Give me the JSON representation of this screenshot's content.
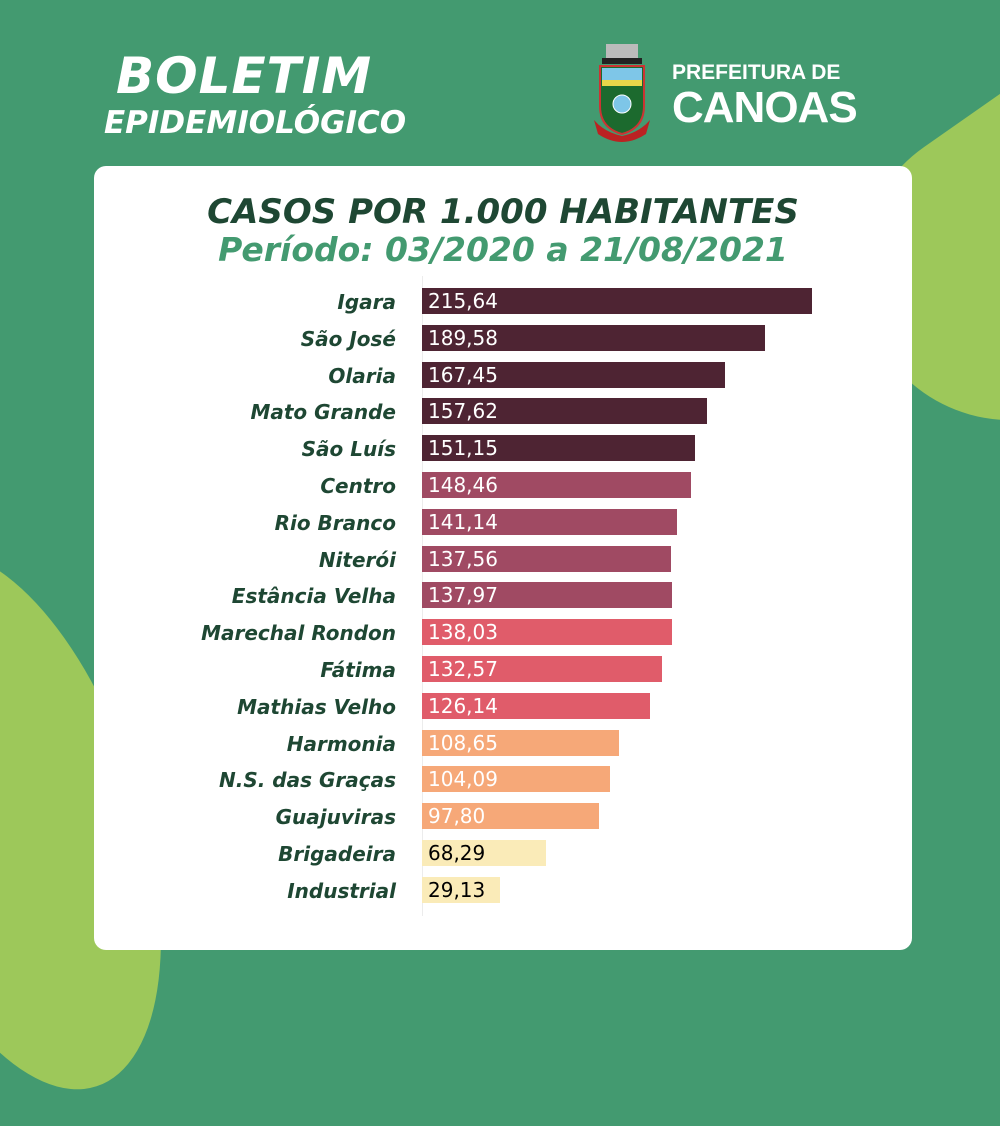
{
  "header": {
    "title_line1": "BOLETIM",
    "title_line2": "EPIDEMIOLÓGICO",
    "brand_line1": "PREFEITURA DE",
    "brand_line2": "CANOAS",
    "seal_text": "CANOAS"
  },
  "chart_data": {
    "type": "bar",
    "orientation": "horizontal",
    "title": "CASOS POR 1.000 HABITANTES",
    "subtitle": "Período: 03/2020 a 21/08/2021",
    "categories": [
      "Igara",
      "São José",
      "Olaria",
      "Mato Grande",
      "São Luís",
      "Centro",
      "Rio Branco",
      "Niterói",
      "Estância Velha",
      "Marechal Rondon",
      "Fátima",
      "Mathias Velho",
      "Harmonia",
      "N.S. das Graças",
      "Guajuviras",
      "Brigadeira",
      "Industrial"
    ],
    "values": [
      215.64,
      189.58,
      167.45,
      157.62,
      151.15,
      148.46,
      141.14,
      137.56,
      137.97,
      138.03,
      132.57,
      126.14,
      108.65,
      104.09,
      97.8,
      68.29,
      29.13
    ],
    "labels": [
      "215,64",
      "189,58",
      "167,45",
      "157,62",
      "151,15",
      "148,46",
      "141,14",
      "137,56",
      "137,97",
      "138,03",
      "132,57",
      "126,14",
      "108,65",
      "104,09",
      "97,80",
      "68,29",
      "29,13"
    ],
    "colors": [
      "#4e2433",
      "#4e2433",
      "#4e2433",
      "#4e2433",
      "#4e2433",
      "#a04a63",
      "#a04a63",
      "#a04a63",
      "#a04a63",
      "#e05c6a",
      "#e05c6a",
      "#e05c6a",
      "#f6a878",
      "#f6a878",
      "#f6a878",
      "#faebb8",
      "#faebb8"
    ],
    "label_colors": [
      "#ffffff",
      "#ffffff",
      "#ffffff",
      "#ffffff",
      "#ffffff",
      "#ffffff",
      "#ffffff",
      "#ffffff",
      "#ffffff",
      "#ffffff",
      "#ffffff",
      "#ffffff",
      "#ffffff",
      "#ffffff",
      "#ffffff",
      "#000000",
      "#000000"
    ],
    "xlim": [
      0,
      215.64
    ]
  }
}
